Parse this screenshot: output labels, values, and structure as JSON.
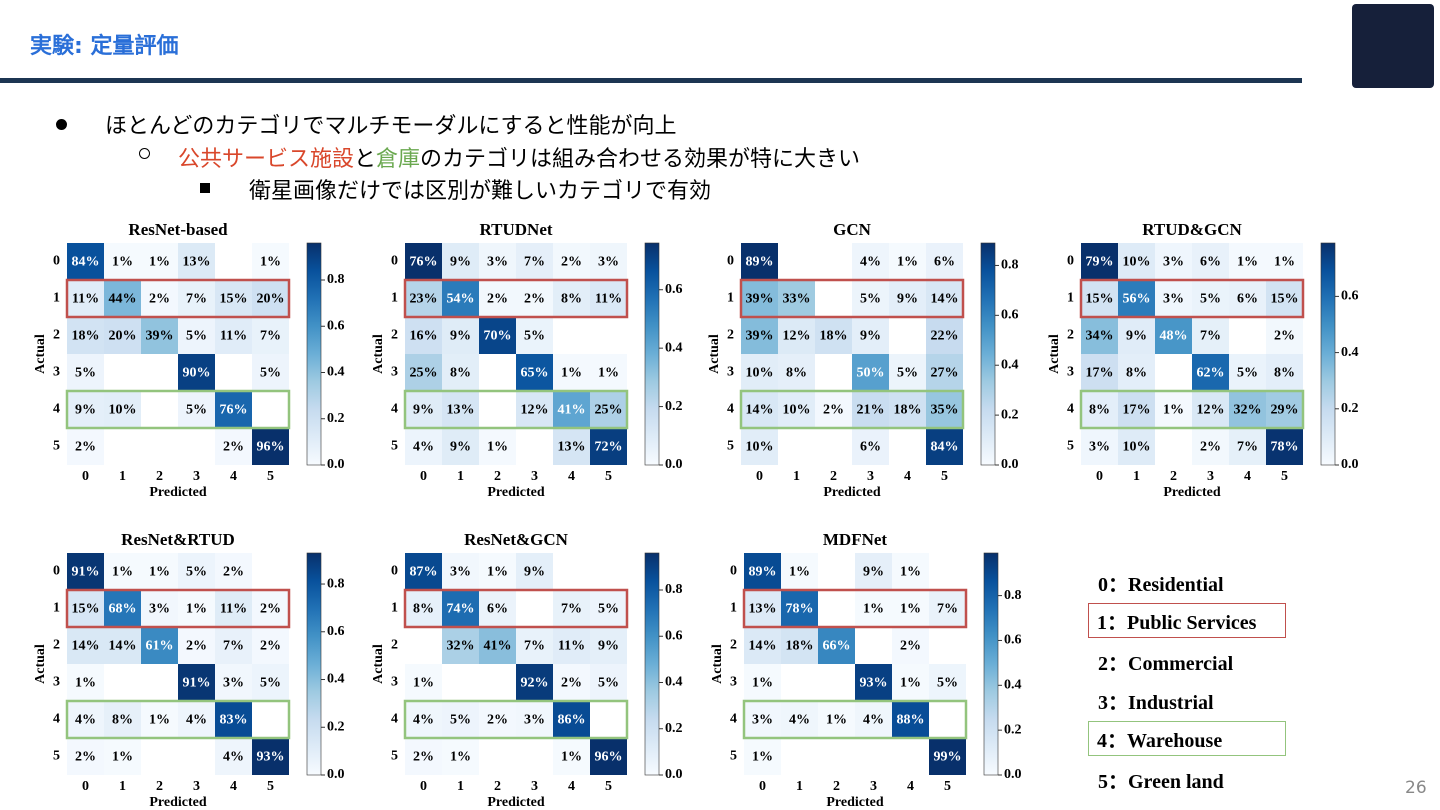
{
  "header": {
    "title": "実験: 定量評価"
  },
  "bullets": {
    "level1": "ほとんどのカテゴリでマルチモーダルにすると性能が向上",
    "level2": [
      {
        "text": "公共サービス施設",
        "color": "#d9472b"
      },
      {
        "text": "と",
        "color": "#000000"
      },
      {
        "text": "倉庫",
        "color": "#6aa84f"
      },
      {
        "text": "のカテゴリは組み合わせる効果が特に大きい",
        "color": "#000000"
      }
    ],
    "level3": "衛星画像だけでは区別が難しいカテゴリで有効"
  },
  "chart_data": [
    {
      "type": "heatmap",
      "title": "ResNet-based",
      "x_label": "Predicted",
      "y_label": "Actual",
      "categories": [
        "0",
        "1",
        "2",
        "3",
        "4",
        "5"
      ],
      "values": [
        [
          0.84,
          0.01,
          0.01,
          0.13,
          null,
          0.01
        ],
        [
          0.11,
          0.44,
          0.02,
          0.07,
          0.15,
          0.2
        ],
        [
          0.18,
          0.2,
          0.39,
          0.05,
          0.11,
          0.07
        ],
        [
          0.05,
          null,
          null,
          0.9,
          null,
          0.05
        ],
        [
          0.09,
          0.1,
          null,
          0.05,
          0.76,
          null
        ],
        [
          0.02,
          null,
          null,
          null,
          0.02,
          0.96
        ]
      ],
      "value_labels": [
        [
          "84%",
          "1%",
          "1%",
          "13%",
          null,
          "1%"
        ],
        [
          "11%",
          "44%",
          "2%",
          "7%",
          "15%",
          "20%"
        ],
        [
          "18%",
          "20%",
          "39%",
          "5%",
          "11%",
          "7%"
        ],
        [
          "5%",
          null,
          null,
          "90%",
          null,
          "5%"
        ],
        [
          "9%",
          "10%",
          null,
          "5%",
          "76%",
          null
        ],
        [
          "2%",
          null,
          null,
          null,
          "2%",
          "96%"
        ]
      ],
      "zlim": [
        0,
        0.96
      ],
      "zticks": [
        {
          "value": 0,
          "label": "0.0"
        },
        0.2,
        0.4,
        0.6,
        0.8
      ]
    },
    {
      "type": "heatmap",
      "title": "RTUDNet",
      "x_label": "Predicted",
      "y_label": "Actual",
      "categories": [
        "0",
        "1",
        "2",
        "3",
        "4",
        "5"
      ],
      "values": [
        [
          0.76,
          0.09,
          0.03,
          0.07,
          0.02,
          0.03
        ],
        [
          0.23,
          0.54,
          0.02,
          0.02,
          0.08,
          0.11
        ],
        [
          0.16,
          0.09,
          0.7,
          0.05,
          null,
          null
        ],
        [
          0.25,
          0.08,
          null,
          0.65,
          0.01,
          0.01
        ],
        [
          0.09,
          0.13,
          null,
          0.12,
          0.41,
          0.25
        ],
        [
          0.04,
          0.09,
          0.01,
          null,
          0.13,
          0.72
        ]
      ],
      "value_labels": [
        [
          "76%",
          "9%",
          "3%",
          "7%",
          "2%",
          "3%"
        ],
        [
          "23%",
          "54%",
          "2%",
          "2%",
          "8%",
          "11%"
        ],
        [
          "16%",
          "9%",
          "70%",
          "5%",
          null,
          null
        ],
        [
          "25%",
          "8%",
          null,
          "65%",
          "1%",
          "1%"
        ],
        [
          "9%",
          "13%",
          null,
          "12%",
          "41%",
          "25%"
        ],
        [
          "4%",
          "9%",
          "1%",
          null,
          "13%",
          "72%"
        ]
      ],
      "zlim": [
        0,
        0.76
      ],
      "zticks": [
        {
          "value": 0,
          "label": "0.0"
        },
        0.2,
        0.4,
        0.6
      ]
    },
    {
      "type": "heatmap",
      "title": "GCN",
      "x_label": "Predicted",
      "y_label": "Actual",
      "categories": [
        "0",
        "1",
        "2",
        "3",
        "4",
        "5"
      ],
      "values": [
        [
          0.89,
          null,
          null,
          0.04,
          0.01,
          0.06
        ],
        [
          0.39,
          0.33,
          null,
          0.05,
          0.09,
          0.14
        ],
        [
          0.39,
          0.12,
          0.18,
          0.09,
          null,
          0.22
        ],
        [
          0.1,
          0.08,
          null,
          0.5,
          0.05,
          0.27
        ],
        [
          0.14,
          0.1,
          0.02,
          0.21,
          0.18,
          0.35
        ],
        [
          0.1,
          null,
          null,
          0.06,
          null,
          0.84
        ]
      ],
      "value_labels": [
        [
          "89%",
          null,
          null,
          "4%",
          "1%",
          "6%"
        ],
        [
          "39%",
          "33%",
          null,
          "5%",
          "9%",
          "14%"
        ],
        [
          "39%",
          "12%",
          "18%",
          "9%",
          null,
          "22%"
        ],
        [
          "10%",
          "8%",
          null,
          "50%",
          "5%",
          "27%"
        ],
        [
          "14%",
          "10%",
          "2%",
          "21%",
          "18%",
          "35%"
        ],
        [
          "10%",
          null,
          null,
          "6%",
          null,
          "84%"
        ]
      ],
      "zlim": [
        0,
        0.89
      ],
      "zticks": [
        {
          "value": 0,
          "label": "0.0"
        },
        0.2,
        0.4,
        0.6,
        0.8
      ]
    },
    {
      "type": "heatmap",
      "title": "RTUD&GCN",
      "x_label": "Predicted",
      "y_label": "Actual",
      "categories": [
        "0",
        "1",
        "2",
        "3",
        "4",
        "5"
      ],
      "values": [
        [
          0.79,
          0.1,
          0.03,
          0.06,
          0.01,
          0.01
        ],
        [
          0.15,
          0.56,
          0.03,
          0.05,
          0.06,
          0.15
        ],
        [
          0.34,
          0.09,
          0.48,
          0.07,
          null,
          0.02
        ],
        [
          0.17,
          0.08,
          null,
          0.62,
          0.05,
          0.08
        ],
        [
          0.08,
          0.17,
          0.01,
          0.12,
          0.32,
          0.29
        ],
        [
          0.03,
          0.1,
          null,
          0.02,
          0.07,
          0.78
        ]
      ],
      "value_labels": [
        [
          "79%",
          "10%",
          "3%",
          "6%",
          "1%",
          "1%"
        ],
        [
          "15%",
          "56%",
          "3%",
          "5%",
          "6%",
          "15%"
        ],
        [
          "34%",
          "9%",
          "48%",
          "7%",
          null,
          "2%"
        ],
        [
          "17%",
          "8%",
          null,
          "62%",
          "5%",
          "8%"
        ],
        [
          "8%",
          "17%",
          "1%",
          "12%",
          "32%",
          "29%"
        ],
        [
          "3%",
          "10%",
          null,
          "2%",
          "7%",
          "78%"
        ]
      ],
      "zlim": [
        0,
        0.79
      ],
      "zticks": [
        {
          "value": 0,
          "label": "0.0"
        },
        0.2,
        0.4,
        0.6
      ]
    },
    {
      "type": "heatmap",
      "title": "ResNet&RTUD",
      "x_label": "Predicted",
      "y_label": "Actual",
      "categories": [
        "0",
        "1",
        "2",
        "3",
        "4",
        "5"
      ],
      "values": [
        [
          0.91,
          0.01,
          0.01,
          0.05,
          0.02,
          null
        ],
        [
          0.15,
          0.68,
          0.03,
          0.01,
          0.11,
          0.02
        ],
        [
          0.14,
          0.14,
          0.61,
          0.02,
          0.07,
          0.02
        ],
        [
          0.01,
          null,
          null,
          0.91,
          0.03,
          0.05
        ],
        [
          0.04,
          0.08,
          0.01,
          0.04,
          0.83,
          null
        ],
        [
          0.02,
          0.01,
          null,
          null,
          0.04,
          0.93
        ]
      ],
      "value_labels": [
        [
          "91%",
          "1%",
          "1%",
          "5%",
          "2%",
          null
        ],
        [
          "15%",
          "68%",
          "3%",
          "1%",
          "11%",
          "2%"
        ],
        [
          "14%",
          "14%",
          "61%",
          "2%",
          "7%",
          "2%"
        ],
        [
          "1%",
          null,
          null,
          "91%",
          "3%",
          "5%"
        ],
        [
          "4%",
          "8%",
          "1%",
          "4%",
          "83%",
          null
        ],
        [
          "2%",
          "1%",
          null,
          null,
          "4%",
          "93%"
        ]
      ],
      "zlim": [
        0,
        0.93
      ],
      "zticks": [
        {
          "value": 0,
          "label": "0.0"
        },
        0.2,
        0.4,
        0.6,
        0.8
      ]
    },
    {
      "type": "heatmap",
      "title": "ResNet&GCN",
      "x_label": "Predicted",
      "y_label": "Actual",
      "categories": [
        "0",
        "1",
        "2",
        "3",
        "4",
        "5"
      ],
      "values": [
        [
          0.87,
          0.03,
          0.01,
          0.09,
          null,
          null
        ],
        [
          0.08,
          0.74,
          0.06,
          null,
          0.07,
          0.05
        ],
        [
          null,
          0.32,
          0.41,
          0.07,
          0.11,
          0.09
        ],
        [
          0.01,
          null,
          null,
          0.92,
          0.02,
          0.05
        ],
        [
          0.04,
          0.05,
          0.02,
          0.03,
          0.86,
          null
        ],
        [
          0.02,
          0.01,
          null,
          null,
          0.01,
          0.96
        ]
      ],
      "value_labels": [
        [
          "87%",
          "3%",
          "1%",
          "9%",
          null,
          null
        ],
        [
          "8%",
          "74%",
          "6%",
          null,
          "7%",
          "5%"
        ],
        [
          null,
          "32%",
          "41%",
          "7%",
          "11%",
          "9%"
        ],
        [
          "1%",
          null,
          null,
          "92%",
          "2%",
          "5%"
        ],
        [
          "4%",
          "5%",
          "2%",
          "3%",
          "86%",
          null
        ],
        [
          "2%",
          "1%",
          null,
          null,
          "1%",
          "96%"
        ]
      ],
      "zlim": [
        0,
        0.96
      ],
      "zticks": [
        {
          "value": 0,
          "label": "0.0"
        },
        0.2,
        0.4,
        0.6,
        0.8
      ]
    },
    {
      "type": "heatmap",
      "title": "MDFNet",
      "x_label": "Predicted",
      "y_label": "Actual",
      "categories": [
        "0",
        "1",
        "2",
        "3",
        "4",
        "5"
      ],
      "values": [
        [
          0.89,
          0.01,
          null,
          0.09,
          0.01,
          null
        ],
        [
          0.13,
          0.78,
          null,
          0.01,
          0.01,
          0.07
        ],
        [
          0.14,
          0.18,
          0.66,
          null,
          0.02,
          null
        ],
        [
          0.01,
          null,
          null,
          0.93,
          0.01,
          0.05
        ],
        [
          0.03,
          0.04,
          0.01,
          0.04,
          0.88,
          null
        ],
        [
          0.01,
          null,
          null,
          null,
          null,
          0.99
        ]
      ],
      "value_labels": [
        [
          "89%",
          "1%",
          null,
          "9%",
          "1%",
          null
        ],
        [
          "13%",
          "78%",
          null,
          "1%",
          "1%",
          "7%"
        ],
        [
          "14%",
          "18%",
          "66%",
          null,
          "2%",
          null
        ],
        [
          "1%",
          null,
          null,
          "93%",
          "1%",
          "5%"
        ],
        [
          "3%",
          "4%",
          "1%",
          "4%",
          "88%",
          null
        ],
        [
          "1%",
          null,
          null,
          null,
          null,
          "99%"
        ]
      ],
      "zlim": [
        0,
        0.99
      ],
      "zticks": [
        {
          "value": 0,
          "label": "0.0"
        },
        0.2,
        0.4,
        0.6,
        0.8
      ]
    }
  ],
  "legend": {
    "items": [
      "0：Residential",
      "1：Public Services",
      "2：Commercial",
      "3：Industrial",
      "4：Warehouse",
      "5：Green land"
    ]
  },
  "page_number": "26"
}
